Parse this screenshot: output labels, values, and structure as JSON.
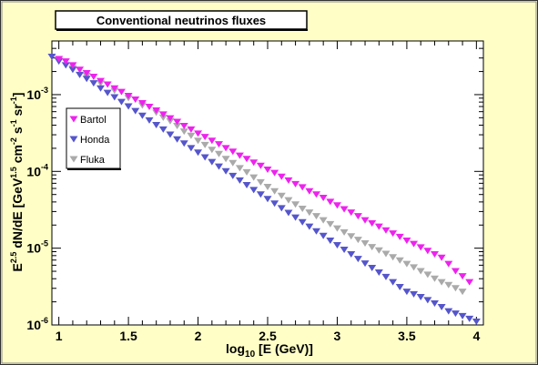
{
  "chart_data": {
    "type": "scatter",
    "title": "Conventional neutrinos fluxes",
    "xlabel": "log10 [E (GeV)]",
    "ylabel": "E^2.5 dN/dE [GeV^1.5 cm^-2 s^-1 sr^-1]",
    "xlim": [
      0.95,
      4.05
    ],
    "ylim": [
      1e-06,
      0.005
    ],
    "yscale": "log",
    "xticks": [
      "1",
      "1.5",
      "2",
      "2.5",
      "3",
      "3.5",
      "4"
    ],
    "yticks": [
      {
        "base": "10",
        "exp": "-3",
        "value": 0.001
      },
      {
        "base": "10",
        "exp": "-4",
        "value": 0.0001
      },
      {
        "base": "10",
        "exp": "-5",
        "value": 1e-05
      },
      {
        "base": "10",
        "exp": "-6",
        "value": 1e-06
      }
    ],
    "legend_position": "left",
    "background": "#fefec6",
    "plot_background": "#ffffff",
    "series": [
      {
        "name": "Bartol",
        "color": "#ee22ee",
        "marker": "down-triangle",
        "x": [
          1.0,
          1.05,
          1.1,
          1.15,
          1.2,
          1.25,
          1.3,
          1.35,
          1.4,
          1.45,
          1.5,
          1.55,
          1.6,
          1.65,
          1.7,
          1.75,
          1.8,
          1.85,
          1.9,
          1.95,
          2.0,
          2.05,
          2.1,
          2.15,
          2.2,
          2.25,
          2.3,
          2.35,
          2.4,
          2.45,
          2.5,
          2.55,
          2.6,
          2.65,
          2.7,
          2.75,
          2.8,
          2.85,
          2.9,
          2.95,
          3.0,
          3.05,
          3.1,
          3.15,
          3.2,
          3.25,
          3.3,
          3.35,
          3.4,
          3.45,
          3.5,
          3.55,
          3.6,
          3.65,
          3.7,
          3.75,
          3.8,
          3.85,
          3.9,
          3.95
        ],
        "y": [
          0.0029,
          0.0027,
          0.0024,
          0.0021,
          0.0019,
          0.0017,
          0.0015,
          0.00135,
          0.0012,
          0.00108,
          0.00096,
          0.00086,
          0.00077,
          0.00069,
          0.00062,
          0.00055,
          0.00049,
          0.00044,
          0.00039,
          0.00035,
          0.00031,
          0.00028,
          0.00025,
          0.000225,
          0.0002,
          0.00018,
          0.00016,
          0.000145,
          0.00013,
          0.000118,
          0.000105,
          9.5e-05,
          8.5e-05,
          7.6e-05,
          6.8e-05,
          6.2e-05,
          5.5e-05,
          5e-05,
          4.5e-05,
          4e-05,
          3.6e-05,
          3.2e-05,
          2.9e-05,
          2.6e-05,
          2.3e-05,
          2.1e-05,
          1.9e-05,
          1.7e-05,
          1.55e-05,
          1.4e-05,
          1.25e-05,
          1.13e-05,
          1.02e-05,
          9.2e-06,
          8.3e-06,
          7.5e-06,
          6.2e-06,
          5e-06,
          4.3e-06,
          3.6e-06
        ]
      },
      {
        "name": "Honda",
        "color": "#5555cc",
        "marker": "down-triangle",
        "x": [
          0.95,
          1.0,
          1.05,
          1.1,
          1.15,
          1.2,
          1.25,
          1.3,
          1.35,
          1.4,
          1.45,
          1.5,
          1.55,
          1.6,
          1.65,
          1.7,
          1.75,
          1.8,
          1.85,
          1.9,
          1.95,
          2.0,
          2.05,
          2.1,
          2.15,
          2.2,
          2.25,
          2.3,
          2.35,
          2.4,
          2.45,
          2.5,
          2.55,
          2.6,
          2.65,
          2.7,
          2.75,
          2.8,
          2.85,
          2.9,
          2.95,
          3.0,
          3.05,
          3.1,
          3.15,
          3.2,
          3.25,
          3.3,
          3.35,
          3.4,
          3.45,
          3.5,
          3.55,
          3.6,
          3.65,
          3.7,
          3.75,
          3.8,
          3.85,
          3.9,
          3.95,
          4.0
        ],
        "y": [
          0.0031,
          0.0027,
          0.0024,
          0.0021,
          0.0018,
          0.0016,
          0.0014,
          0.0012,
          0.00105,
          0.00092,
          0.0008,
          0.0007,
          0.00061,
          0.00053,
          0.00046,
          0.0004,
          0.00035,
          0.0003,
          0.00026,
          0.00023,
          0.0002,
          0.000175,
          0.000152,
          0.000132,
          0.000115,
          0.0001,
          8.7e-05,
          7.6e-05,
          6.6e-05,
          5.7e-05,
          5e-05,
          4.35e-05,
          3.8e-05,
          3.3e-05,
          2.87e-05,
          2.5e-05,
          2.17e-05,
          1.9e-05,
          1.65e-05,
          1.44e-05,
          1.25e-05,
          1.09e-05,
          9.5e-06,
          8.3e-06,
          7.2e-06,
          6.3e-06,
          5.5e-06,
          4.8e-06,
          4.2e-06,
          3.6e-06,
          3.1e-06,
          2.7e-06,
          2.5e-06,
          2.3e-06,
          2.1e-06,
          1.9e-06,
          1.7e-06,
          1.5e-06,
          1.4e-06,
          1.3e-06,
          1.2e-06,
          1.1e-06
        ]
      },
      {
        "name": "Fluka",
        "color": "#aaaaaa",
        "marker": "down-triangle",
        "x": [
          1.0,
          1.1,
          1.2,
          1.3,
          1.4,
          1.5,
          1.6,
          1.7,
          1.75,
          1.8,
          1.85,
          1.9,
          1.95,
          2.0,
          2.05,
          2.1,
          2.15,
          2.2,
          2.25,
          2.3,
          2.35,
          2.4,
          2.45,
          2.5,
          2.55,
          2.6,
          2.65,
          2.7,
          2.75,
          2.8,
          2.85,
          2.9,
          2.95,
          3.0,
          3.05,
          3.1,
          3.15,
          3.2,
          3.25,
          3.3,
          3.35,
          3.4,
          3.45,
          3.5,
          3.55,
          3.6,
          3.65,
          3.7,
          3.75,
          3.8,
          3.85,
          3.9
        ],
        "y": [
          0.0028,
          0.0022,
          0.00175,
          0.0014,
          0.00112,
          0.0009,
          0.00072,
          0.00058,
          0.0005,
          0.00045,
          0.00039,
          0.00033,
          0.00029,
          0.00025,
          0.00022,
          0.00019,
          0.000168,
          0.000145,
          0.000128,
          0.00011,
          9.7e-05,
          8.3e-05,
          7.2e-05,
          6.25e-05,
          5.5e-05,
          4.8e-05,
          4.2e-05,
          3.7e-05,
          3.25e-05,
          2.9e-05,
          2.6e-05,
          2.3e-05,
          2.05e-05,
          1.8e-05,
          1.6e-05,
          1.42e-05,
          1.28e-05,
          1.15e-05,
          1.03e-05,
          9.3e-06,
          8.4e-06,
          7.6e-06,
          6.9e-06,
          6.2e-06,
          5.6e-06,
          5e-06,
          4.5e-06,
          4e-06,
          3.6e-06,
          3.3e-06,
          3e-06,
          2.7e-06
        ]
      }
    ]
  }
}
